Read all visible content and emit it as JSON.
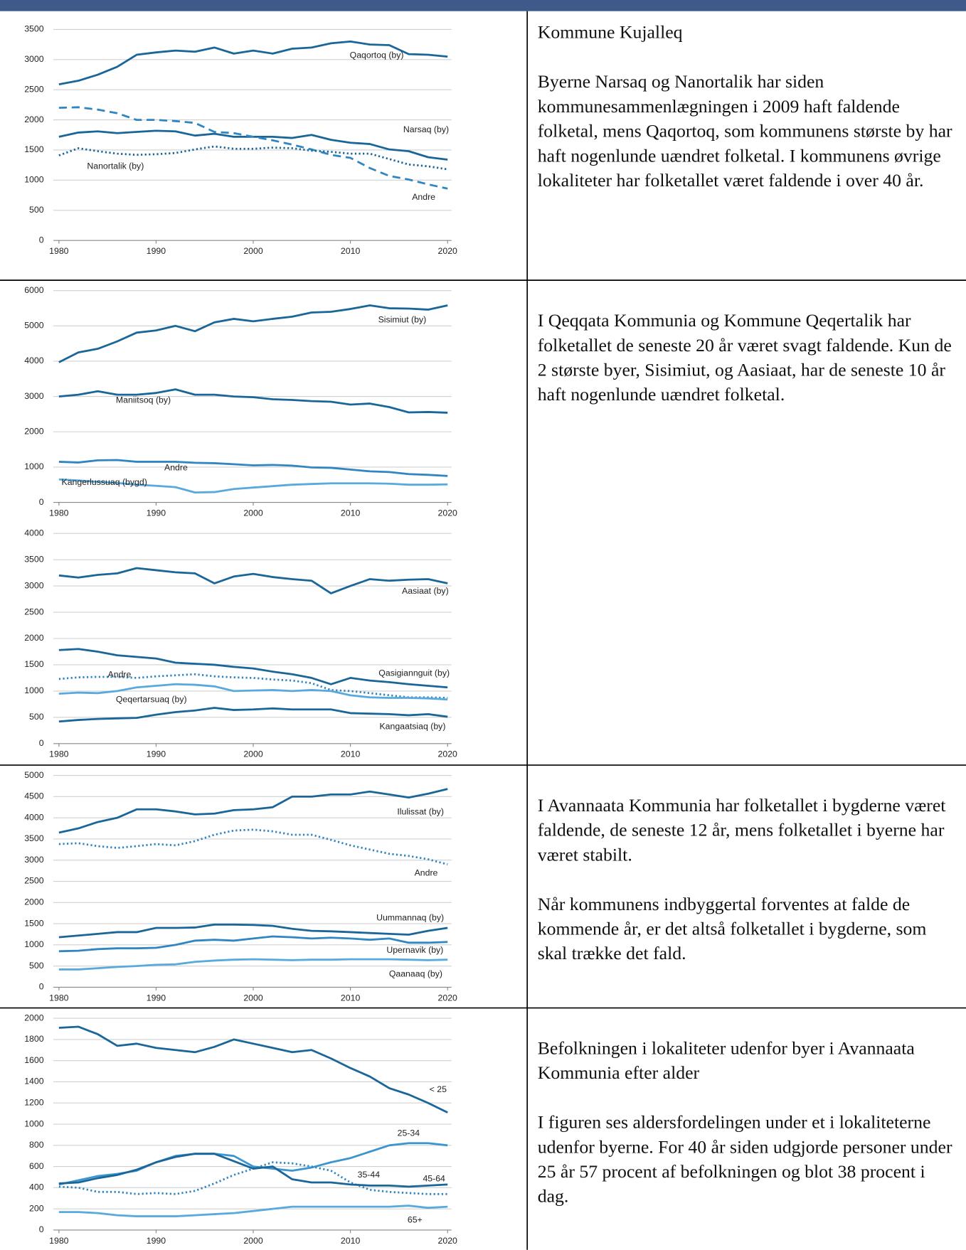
{
  "chart_data": [
    {
      "type": "line",
      "x": [
        1980,
        1982,
        1984,
        1986,
        1988,
        1990,
        1992,
        1994,
        1996,
        1998,
        2000,
        2002,
        2004,
        2006,
        2008,
        2010,
        2012,
        2014,
        2016,
        2018,
        2020
      ],
      "xlim": [
        1980,
        2020
      ],
      "xticks": [
        1980,
        1990,
        2000,
        2010,
        2020
      ],
      "ylim": [
        0,
        3500
      ],
      "yticks": [
        0,
        500,
        1000,
        1500,
        2000,
        2500,
        3000,
        3500
      ],
      "grid": true,
      "series": [
        {
          "name": "Qaqortoq (by)",
          "color": "#1a6699",
          "line_style": "solid",
          "values": [
            2590,
            2650,
            2750,
            2880,
            3080,
            3120,
            3150,
            3130,
            3200,
            3100,
            3150,
            3100,
            3180,
            3200,
            3270,
            3300,
            3250,
            3240,
            3090,
            3080,
            3050
          ]
        },
        {
          "name": "Narsaq (by)",
          "color": "#1a6699",
          "line_style": "solid",
          "values": [
            1720,
            1790,
            1810,
            1780,
            1800,
            1820,
            1810,
            1740,
            1770,
            1720,
            1720,
            1720,
            1700,
            1750,
            1670,
            1620,
            1600,
            1510,
            1480,
            1380,
            1340
          ]
        },
        {
          "name": "Andre",
          "color": "#2f86c0",
          "line_style": "dashed",
          "values": [
            2200,
            2210,
            2170,
            2110,
            2000,
            2000,
            1980,
            1950,
            1800,
            1780,
            1720,
            1660,
            1590,
            1510,
            1420,
            1370,
            1200,
            1070,
            1010,
            930,
            860
          ]
        },
        {
          "name": "Nanortalik (by)",
          "color": "#1a6699",
          "line_style": "dotted",
          "values": [
            1410,
            1530,
            1480,
            1440,
            1420,
            1430,
            1450,
            1510,
            1560,
            1520,
            1520,
            1540,
            1530,
            1490,
            1470,
            1440,
            1440,
            1350,
            1260,
            1230,
            1180
          ]
        }
      ]
    },
    {
      "type": "line",
      "x": [
        1980,
        1982,
        1984,
        1986,
        1988,
        1990,
        1992,
        1994,
        1996,
        1998,
        2000,
        2002,
        2004,
        2006,
        2008,
        2010,
        2012,
        2014,
        2016,
        2018,
        2020
      ],
      "xlim": [
        1980,
        2020
      ],
      "xticks": [
        1980,
        1990,
        2000,
        2010,
        2020
      ],
      "ylim": [
        0,
        6000
      ],
      "yticks": [
        0,
        1000,
        2000,
        3000,
        4000,
        5000,
        6000
      ],
      "grid": true,
      "series": [
        {
          "name": "Sisimiut (by)",
          "color": "#1a6699",
          "line_style": "solid",
          "values": [
            3970,
            4250,
            4350,
            4560,
            4810,
            4870,
            5000,
            4850,
            5100,
            5200,
            5130,
            5200,
            5260,
            5380,
            5400,
            5480,
            5580,
            5500,
            5490,
            5460,
            5580
          ]
        },
        {
          "name": "Maniitsoq (by)",
          "color": "#1a6699",
          "line_style": "solid",
          "values": [
            3000,
            3050,
            3150,
            3050,
            3050,
            3100,
            3200,
            3050,
            3050,
            3000,
            2980,
            2920,
            2900,
            2870,
            2850,
            2770,
            2800,
            2700,
            2550,
            2560,
            2540
          ]
        },
        {
          "name": "Andre",
          "color": "#2f86c0",
          "line_style": "solid",
          "values": [
            1150,
            1130,
            1190,
            1200,
            1150,
            1150,
            1150,
            1120,
            1110,
            1080,
            1050,
            1060,
            1040,
            990,
            980,
            930,
            880,
            860,
            800,
            780,
            750
          ]
        },
        {
          "name": "Kangerlussuaq (bygd)",
          "color": "#59a9dd",
          "line_style": "solid",
          "values": [
            650,
            620,
            580,
            550,
            500,
            470,
            430,
            280,
            290,
            380,
            420,
            460,
            500,
            520,
            540,
            540,
            540,
            530,
            500,
            500,
            510
          ]
        }
      ]
    },
    {
      "type": "line",
      "x": [
        1980,
        1982,
        1984,
        1986,
        1988,
        1990,
        1992,
        1994,
        1996,
        1998,
        2000,
        2002,
        2004,
        2006,
        2008,
        2010,
        2012,
        2014,
        2016,
        2018,
        2020
      ],
      "xlim": [
        1980,
        2020
      ],
      "xticks": [
        1980,
        1990,
        2000,
        2010,
        2020
      ],
      "ylim": [
        0,
        4000
      ],
      "yticks": [
        0,
        500,
        1000,
        1500,
        2000,
        2500,
        3000,
        3500,
        4000
      ],
      "grid": true,
      "series": [
        {
          "name": "Aasiaat (by)",
          "color": "#1a6699",
          "line_style": "solid",
          "values": [
            3200,
            3160,
            3210,
            3240,
            3340,
            3300,
            3260,
            3240,
            3050,
            3180,
            3230,
            3170,
            3130,
            3100,
            2860,
            3000,
            3130,
            3100,
            3120,
            3130,
            3050
          ]
        },
        {
          "name": "Qasigiannguit (by)",
          "color": "#1a6699",
          "line_style": "solid",
          "values": [
            1780,
            1800,
            1750,
            1680,
            1650,
            1620,
            1540,
            1520,
            1500,
            1460,
            1430,
            1370,
            1320,
            1250,
            1130,
            1250,
            1200,
            1170,
            1130,
            1100,
            1070
          ]
        },
        {
          "name": "Andre",
          "color": "#2f86c0",
          "line_style": "dotted",
          "values": [
            1230,
            1260,
            1270,
            1270,
            1250,
            1280,
            1300,
            1320,
            1280,
            1260,
            1250,
            1220,
            1200,
            1150,
            1020,
            1000,
            960,
            920,
            880,
            880,
            870
          ]
        },
        {
          "name": "Qeqertarsuaq (by)",
          "color": "#59a9dd",
          "line_style": "solid",
          "values": [
            950,
            970,
            960,
            1000,
            1070,
            1100,
            1130,
            1120,
            1090,
            1000,
            1010,
            1020,
            1000,
            1020,
            1000,
            920,
            880,
            870,
            870,
            860,
            840
          ]
        },
        {
          "name": "Kangaatsiaq (by)",
          "color": "#1a6699",
          "line_style": "solid",
          "values": [
            420,
            450,
            470,
            480,
            490,
            550,
            600,
            630,
            680,
            640,
            650,
            670,
            650,
            650,
            650,
            580,
            570,
            560,
            540,
            560,
            510
          ]
        }
      ]
    },
    {
      "type": "line",
      "x": [
        1980,
        1982,
        1984,
        1986,
        1988,
        1990,
        1992,
        1994,
        1996,
        1998,
        2000,
        2002,
        2004,
        2006,
        2008,
        2010,
        2012,
        2014,
        2016,
        2018,
        2020
      ],
      "xlim": [
        1980,
        2020
      ],
      "xticks": [
        1980,
        1990,
        2000,
        2010,
        2020
      ],
      "ylim": [
        0,
        5000
      ],
      "yticks": [
        0,
        500,
        1000,
        1500,
        2000,
        2500,
        3000,
        3500,
        4000,
        4500,
        5000
      ],
      "grid": true,
      "series": [
        {
          "name": "Ilulissat (by)",
          "color": "#1a6699",
          "line_style": "solid",
          "values": [
            3650,
            3750,
            3900,
            4000,
            4200,
            4200,
            4150,
            4080,
            4100,
            4180,
            4200,
            4250,
            4500,
            4500,
            4550,
            4550,
            4620,
            4550,
            4480,
            4570,
            4680
          ]
        },
        {
          "name": "Andre",
          "color": "#2f86c0",
          "line_style": "dotted",
          "values": [
            3380,
            3400,
            3330,
            3290,
            3330,
            3380,
            3350,
            3450,
            3600,
            3700,
            3720,
            3680,
            3600,
            3600,
            3480,
            3350,
            3250,
            3150,
            3100,
            3020,
            2900
          ]
        },
        {
          "name": "Uummannaq (by)",
          "color": "#1a6699",
          "line_style": "solid",
          "values": [
            1180,
            1220,
            1260,
            1300,
            1300,
            1400,
            1400,
            1410,
            1480,
            1480,
            1470,
            1450,
            1380,
            1330,
            1320,
            1300,
            1280,
            1260,
            1240,
            1330,
            1400
          ]
        },
        {
          "name": "Upernavik (by)",
          "color": "#2f86c0",
          "line_style": "solid",
          "values": [
            850,
            860,
            900,
            920,
            920,
            930,
            1000,
            1100,
            1120,
            1100,
            1150,
            1200,
            1180,
            1150,
            1170,
            1150,
            1120,
            1150,
            1050,
            1050,
            1070
          ]
        },
        {
          "name": "Qaanaaq (by)",
          "color": "#59a9dd",
          "line_style": "solid",
          "values": [
            420,
            420,
            450,
            480,
            500,
            530,
            540,
            600,
            630,
            650,
            660,
            650,
            640,
            650,
            650,
            660,
            660,
            660,
            650,
            640,
            650
          ]
        }
      ]
    },
    {
      "type": "line",
      "x": [
        1980,
        1982,
        1984,
        1986,
        1988,
        1990,
        1992,
        1994,
        1996,
        1998,
        2000,
        2002,
        2004,
        2006,
        2008,
        2010,
        2012,
        2014,
        2016,
        2018,
        2020
      ],
      "xlim": [
        1980,
        2020
      ],
      "xticks": [
        1980,
        1990,
        2000,
        2010,
        2020
      ],
      "ylim": [
        0,
        2000
      ],
      "yticks": [
        0,
        200,
        400,
        600,
        800,
        1000,
        1200,
        1400,
        1600,
        1800,
        2000
      ],
      "grid": true,
      "series": [
        {
          "name": "< 25",
          "color": "#1a6699",
          "line_style": "solid",
          "values": [
            1910,
            1920,
            1850,
            1740,
            1760,
            1720,
            1700,
            1680,
            1730,
            1800,
            1760,
            1720,
            1680,
            1700,
            1620,
            1530,
            1450,
            1340,
            1280,
            1200,
            1110
          ]
        },
        {
          "name": "25-34",
          "color": "#3b95cf",
          "line_style": "solid",
          "values": [
            430,
            470,
            510,
            530,
            560,
            640,
            700,
            720,
            720,
            700,
            600,
            580,
            560,
            590,
            640,
            680,
            740,
            800,
            820,
            820,
            800
          ]
        },
        {
          "name": "35-44",
          "color": "#2f86c0",
          "line_style": "dotted",
          "values": [
            410,
            400,
            360,
            360,
            340,
            350,
            340,
            370,
            440,
            520,
            580,
            640,
            630,
            600,
            560,
            450,
            380,
            360,
            350,
            340,
            340
          ]
        },
        {
          "name": "45-64",
          "color": "#1a6699",
          "line_style": "solid",
          "values": [
            440,
            450,
            490,
            520,
            570,
            640,
            690,
            720,
            720,
            650,
            580,
            600,
            480,
            450,
            450,
            430,
            420,
            420,
            410,
            420,
            430
          ]
        },
        {
          "name": "65+",
          "color": "#59a9dd",
          "line_style": "solid",
          "values": [
            170,
            170,
            160,
            140,
            130,
            130,
            130,
            140,
            150,
            160,
            180,
            200,
            220,
            220,
            220,
            220,
            220,
            220,
            230,
            210,
            220
          ]
        }
      ]
    }
  ],
  "text_cells": [
    {
      "paragraphs": [
        "Kommune Kujalleq",
        "Byerne Narsaq og Nanortalik har siden kommunesammenlægningen i 2009 haft faldende folketal, mens Qaqortoq, som kommunens største by har haft nogenlunde uændret folketal. I kommunens øvrige lokaliteter har folketallet været faldende i over 40 år."
      ]
    },
    {
      "paragraphs": [
        "I Qeqqata Kommunia og Kommune Qeqertalik har folketallet de seneste 20 år været svagt faldende. Kun de 2 største byer, Sisimiut, og Aasiaat, har de seneste 10 år haft nogenlunde uændret folketal."
      ]
    },
    {
      "paragraphs": [
        "I Avannaata Kommunia har folketallet i bygderne været faldende, de seneste 12 år, mens folketallet i byerne har været stabilt.",
        "Når kommunens indbyggertal forventes at falde de kommende år, er det altså folketallet i bygderne, som skal trække det fald."
      ]
    },
    {
      "paragraphs": [
        "Befolkningen i lokaliteter udenfor byer i Avannaata Kommunia efter alder",
        "I figuren ses aldersfordelingen under et i lokaliteterne udenfor byerne. For 40 år siden udgjorde personer under 25 år 57 procent af befolkningen og blot 38 procent i dag."
      ]
    }
  ]
}
